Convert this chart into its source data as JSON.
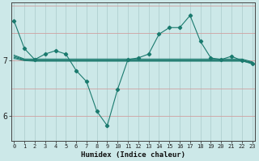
{
  "xlabel": "Humidex (Indice chaleur)",
  "background_color": "#cce8e8",
  "grid_color_v": "#b0d0d0",
  "grid_color_h": "#d0a0a0",
  "line_color": "#1a7a6e",
  "x_values": [
    0,
    1,
    2,
    3,
    4,
    5,
    6,
    7,
    8,
    9,
    10,
    11,
    12,
    13,
    14,
    15,
    16,
    17,
    18,
    19,
    20,
    21,
    22,
    23
  ],
  "series": {
    "main": [
      7.72,
      7.22,
      7.02,
      7.12,
      7.18,
      7.12,
      6.82,
      6.62,
      6.08,
      5.82,
      6.48,
      7.02,
      7.05,
      7.12,
      7.48,
      7.6,
      7.6,
      7.82,
      7.35,
      7.05,
      7.02,
      7.08,
      7.0,
      6.94
    ],
    "ref1": [
      7.06,
      7.01,
      7.0,
      7.0,
      7.0,
      7.0,
      7.0,
      7.0,
      7.0,
      7.0,
      7.0,
      7.0,
      7.0,
      7.0,
      7.0,
      7.0,
      7.0,
      7.0,
      7.0,
      7.0,
      7.0,
      7.0,
      7.0,
      6.96
    ],
    "ref2": [
      7.08,
      7.02,
      7.01,
      7.01,
      7.01,
      7.01,
      7.01,
      7.01,
      7.01,
      7.01,
      7.01,
      7.01,
      7.01,
      7.01,
      7.01,
      7.01,
      7.01,
      7.01,
      7.01,
      7.01,
      7.01,
      7.01,
      7.01,
      6.97
    ],
    "ref3": [
      7.1,
      7.03,
      7.03,
      7.03,
      7.03,
      7.03,
      7.03,
      7.03,
      7.03,
      7.03,
      7.03,
      7.03,
      7.03,
      7.03,
      7.03,
      7.03,
      7.03,
      7.03,
      7.03,
      7.03,
      7.03,
      7.03,
      7.03,
      6.98
    ],
    "ref4": [
      7.04,
      7.0,
      6.99,
      6.99,
      6.99,
      6.99,
      6.99,
      6.99,
      6.99,
      6.99,
      6.99,
      6.99,
      6.99,
      6.99,
      6.99,
      6.99,
      6.99,
      6.99,
      6.99,
      6.99,
      6.99,
      6.99,
      6.99,
      6.96
    ]
  },
  "ylim": [
    5.55,
    8.05
  ],
  "yticks": [
    6,
    7
  ],
  "xlim": [
    -0.3,
    23.3
  ],
  "xticks": [
    0,
    1,
    2,
    3,
    4,
    5,
    6,
    7,
    8,
    9,
    10,
    11,
    12,
    13,
    14,
    15,
    16,
    17,
    18,
    19,
    20,
    21,
    22,
    23
  ],
  "figsize": [
    3.2,
    2.0
  ],
  "dpi": 100
}
